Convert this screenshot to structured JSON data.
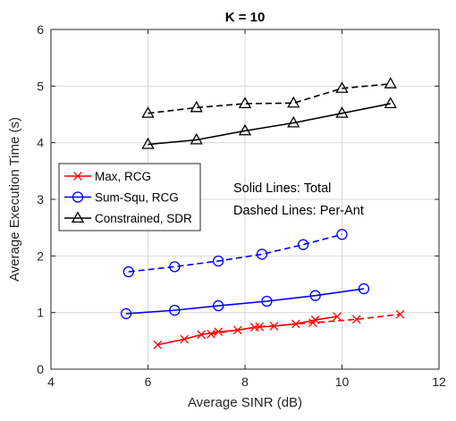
{
  "chart_data": {
    "type": "line",
    "title": "K = 10",
    "xlabel": "Average SINR (dB)",
    "ylabel": "Average Execution Time (s)",
    "xlim": [
      4,
      12
    ],
    "ylim": [
      0,
      6
    ],
    "xticks": [
      "4",
      "6",
      "8",
      "10",
      "12"
    ],
    "yticks": [
      "0",
      "1",
      "2",
      "3",
      "4",
      "5",
      "6"
    ],
    "grid": true,
    "legend_position": "middle-left",
    "annotations": [
      "Solid Lines: Total",
      "Dashed Lines: Per-Ant"
    ],
    "series": [
      {
        "name": "Max, RCG",
        "style": "solid",
        "color": "#ff0000",
        "marker": "x",
        "x": [
          6.2,
          6.75,
          7.1,
          7.45,
          7.85,
          8.2,
          8.6,
          9.05,
          9.45,
          9.9
        ],
        "y": [
          0.43,
          0.53,
          0.61,
          0.66,
          0.69,
          0.74,
          0.76,
          0.8,
          0.87,
          0.93
        ]
      },
      {
        "name": "Max, RCG",
        "legend": false,
        "style": "dashed",
        "color": "#ff0000",
        "marker": "x",
        "x": [
          7.3,
          8.3,
          9.4,
          10.3,
          11.2
        ],
        "y": [
          0.62,
          0.75,
          0.82,
          0.88,
          0.97
        ]
      },
      {
        "name": "Sum-Squ, RCG",
        "style": "solid",
        "color": "#0000ff",
        "marker": "o",
        "x": [
          5.55,
          6.55,
          7.45,
          8.45,
          9.45,
          10.45
        ],
        "y": [
          0.98,
          1.04,
          1.12,
          1.2,
          1.3,
          1.42
        ]
      },
      {
        "name": "Sum-Squ, RCG",
        "legend": false,
        "style": "dashed",
        "color": "#0000ff",
        "marker": "o",
        "x": [
          5.6,
          6.55,
          7.45,
          8.35,
          9.2,
          10.0
        ],
        "y": [
          1.72,
          1.81,
          1.91,
          2.03,
          2.2,
          2.38
        ]
      },
      {
        "name": "Constrained, SDR",
        "style": "solid",
        "color": "#000000",
        "marker": "^",
        "x": [
          6.0,
          7.0,
          8.0,
          9.0,
          10.0,
          11.0
        ],
        "y": [
          3.97,
          4.05,
          4.21,
          4.35,
          4.52,
          4.69
        ]
      },
      {
        "name": "Constrained, SDR",
        "legend": false,
        "style": "dashed",
        "color": "#000000",
        "marker": "^",
        "x": [
          6.0,
          7.0,
          8.0,
          9.0,
          10.0,
          11.0
        ],
        "y": [
          4.52,
          4.62,
          4.69,
          4.7,
          4.96,
          5.04
        ]
      }
    ]
  }
}
